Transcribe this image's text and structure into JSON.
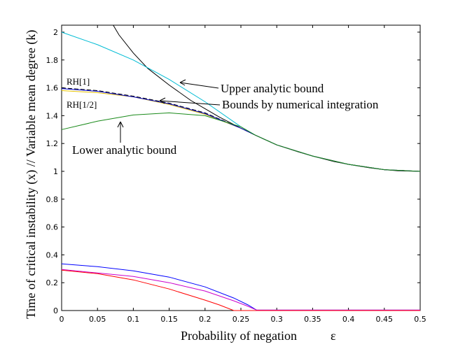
{
  "chart_data": {
    "type": "line",
    "title": "",
    "xlabel": "Probability of negation",
    "xlabel_symbol": "ε",
    "ylabel": "Time of critical instability (x) // Variable mean degree (k)",
    "xlim": [
      0,
      0.5
    ],
    "ylim": [
      0,
      2.05
    ],
    "xticks": [
      "0",
      "0.05",
      "0.1",
      "0.15",
      "0.2",
      "0.25",
      "0.3",
      "0.35",
      "0.4",
      "0.45",
      "0.5"
    ],
    "yticks": [
      "0",
      "0.2",
      "0.4",
      "0.6",
      "0.8",
      "1",
      "1.2",
      "1.4",
      "1.6",
      "1.8",
      "2"
    ],
    "grid": false,
    "series": [
      {
        "color": "#000000",
        "style": "solid",
        "x": [
          0.072,
          0.08,
          0.1,
          0.12,
          0.15,
          0.18,
          0.2,
          0.22,
          0.25,
          0.27,
          0.3,
          0.33,
          0.35,
          0.38,
          0.4,
          0.43,
          0.45,
          0.47,
          0.5
        ],
        "y": [
          2.05,
          1.98,
          1.85,
          1.74,
          1.62,
          1.51,
          1.45,
          1.39,
          1.31,
          1.26,
          1.19,
          1.14,
          1.11,
          1.07,
          1.05,
          1.025,
          1.012,
          1.004,
          1.0
        ]
      },
      {
        "color": "#00bcd4",
        "style": "solid",
        "x": [
          0,
          0.05,
          0.1,
          0.15,
          0.2,
          0.25,
          0.27,
          0.3,
          0.35,
          0.4,
          0.45,
          0.5
        ],
        "y": [
          2.0,
          1.91,
          1.8,
          1.66,
          1.5,
          1.32,
          1.26,
          1.19,
          1.11,
          1.05,
          1.012,
          1.0
        ]
      },
      {
        "color": "#000000",
        "style": "dashed",
        "x": [
          0,
          0.05,
          0.1,
          0.15,
          0.2,
          0.25,
          0.27,
          0.3,
          0.35,
          0.4,
          0.45,
          0.5
        ],
        "y": [
          1.6,
          1.58,
          1.54,
          1.49,
          1.42,
          1.31,
          1.26,
          1.19,
          1.11,
          1.05,
          1.012,
          1.0
        ]
      },
      {
        "color": "#e6c200",
        "style": "solid",
        "x": [
          0,
          0.05,
          0.1,
          0.15,
          0.2,
          0.25,
          0.27,
          0.3,
          0.35,
          0.4,
          0.45,
          0.5
        ],
        "y": [
          1.58,
          1.565,
          1.535,
          1.48,
          1.41,
          1.31,
          1.26,
          1.19,
          1.11,
          1.05,
          1.012,
          1.0
        ]
      },
      {
        "color": "#0000cc",
        "style": "solid",
        "x": [
          0,
          0.05,
          0.1,
          0.15,
          0.2,
          0.25,
          0.27,
          0.3,
          0.35,
          0.4,
          0.45,
          0.5
        ],
        "y": [
          1.595,
          1.575,
          1.535,
          1.485,
          1.415,
          1.31,
          1.26,
          1.19,
          1.11,
          1.05,
          1.012,
          1.0
        ]
      },
      {
        "color": "#1a8a1a",
        "style": "solid",
        "x": [
          0,
          0.05,
          0.1,
          0.15,
          0.2,
          0.25,
          0.27,
          0.3,
          0.35,
          0.4,
          0.45,
          0.5
        ],
        "y": [
          1.3,
          1.36,
          1.405,
          1.42,
          1.4,
          1.32,
          1.26,
          1.19,
          1.11,
          1.05,
          1.012,
          1.0
        ]
      },
      {
        "color": "#0000ff",
        "style": "solid",
        "x": [
          0,
          0.05,
          0.1,
          0.15,
          0.2,
          0.24,
          0.26,
          0.272,
          0.3,
          0.4,
          0.5
        ],
        "y": [
          0.335,
          0.315,
          0.285,
          0.24,
          0.17,
          0.09,
          0.04,
          0.003,
          0.003,
          0.003,
          0.003
        ]
      },
      {
        "color": "#cc00cc",
        "style": "solid",
        "x": [
          0,
          0.05,
          0.1,
          0.15,
          0.2,
          0.24,
          0.26,
          0.272,
          0.3,
          0.4,
          0.5
        ],
        "y": [
          0.295,
          0.27,
          0.245,
          0.2,
          0.14,
          0.07,
          0.03,
          0.003,
          0.003,
          0.003,
          0.003
        ]
      },
      {
        "color": "#ff0000",
        "style": "solid",
        "x": [
          0,
          0.05,
          0.1,
          0.15,
          0.2,
          0.22,
          0.24,
          0.26,
          0.3,
          0.4,
          0.5
        ],
        "y": [
          0.29,
          0.265,
          0.22,
          0.155,
          0.075,
          0.04,
          0.0,
          0.0,
          0.0,
          0.0,
          0.0
        ]
      }
    ],
    "annotations": [
      {
        "text": "Upper analytic bound",
        "arrow_to": [
          0.167,
          1.65
        ]
      },
      {
        "text": "Bounds by numerical integration",
        "arrow_to": [
          0.138,
          1.52
        ]
      },
      {
        "text": "Lower analytic bound",
        "arrow_to": [
          0.082,
          1.38
        ]
      },
      {
        "text": "RH[1]"
      },
      {
        "text": "RH[1/2]"
      }
    ]
  }
}
